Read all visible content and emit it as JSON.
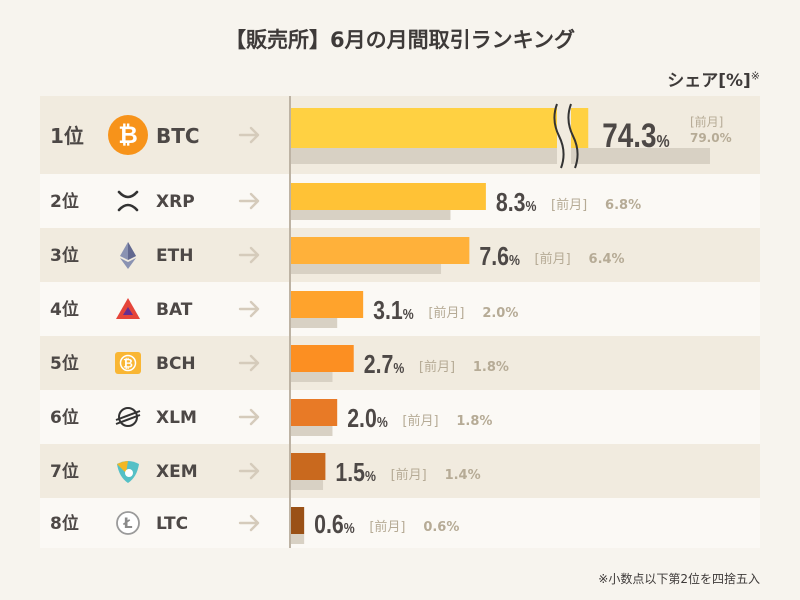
{
  "chart_data": {
    "type": "bar",
    "title": "【販売所】6月の月間取引ランキング",
    "unit_label": "シェア[%]",
    "unit_mark": "※",
    "prev_label": "[前月]",
    "pct_sign": "%",
    "xlim": [
      0,
      12
    ],
    "axis_break": {
      "category": "BTC",
      "marker": "wavy"
    },
    "series": [
      {
        "key": "current"
      },
      {
        "key": "previous"
      }
    ],
    "rows": [
      {
        "rank": "1位",
        "name": "BTC",
        "icon": "bitcoin-icon",
        "current": 74.3,
        "previous": 79.0,
        "current_text": "74.3",
        "previous_text": "79.0",
        "color": "#ffd142"
      },
      {
        "rank": "2位",
        "name": "XRP",
        "icon": "xrp-icon",
        "current": 8.3,
        "previous": 6.8,
        "current_text": "8.3",
        "previous_text": "6.8",
        "color": "#ffc236"
      },
      {
        "rank": "3位",
        "name": "ETH",
        "icon": "ethereum-icon",
        "current": 7.6,
        "previous": 6.4,
        "current_text": "7.6",
        "previous_text": "6.4",
        "color": "#ffb13a"
      },
      {
        "rank": "4位",
        "name": "BAT",
        "icon": "bat-icon",
        "current": 3.1,
        "previous": 2.0,
        "current_text": "3.1",
        "previous_text": "2.0",
        "color": "#ffa32c"
      },
      {
        "rank": "5位",
        "name": "BCH",
        "icon": "bitcoin-cash-icon",
        "current": 2.7,
        "previous": 1.8,
        "current_text": "2.7",
        "previous_text": "1.8",
        "color": "#fc8f22"
      },
      {
        "rank": "6位",
        "name": "XLM",
        "icon": "stellar-icon",
        "current": 2.0,
        "previous": 1.8,
        "current_text": "2.0",
        "previous_text": "1.8",
        "color": "#e87a26"
      },
      {
        "rank": "7位",
        "name": "XEM",
        "icon": "nem-icon",
        "current": 1.5,
        "previous": 1.4,
        "current_text": "1.5",
        "previous_text": "1.4",
        "color": "#c9691e"
      },
      {
        "rank": "8位",
        "name": "LTC",
        "icon": "litecoin-icon",
        "current": 0.6,
        "previous": 0.6,
        "current_text": "0.6",
        "previous_text": "0.6",
        "color": "#9a5116"
      }
    ],
    "colors": {
      "previous": "#d8d1c4",
      "row_odd": "#f1ebdf",
      "row_even": "#fbf9f5",
      "arrow": "#d5cbbb",
      "axis": "#bdb3a4",
      "prev_text": "#b6ab96",
      "value_text": "#4d4846",
      "btc": "#f7931a",
      "bch": "#f9b634",
      "bat": "#e5453a",
      "xem_teal": "#55c0c6",
      "xem_gold": "#f3b724",
      "dark": "#333333"
    },
    "footnote": "※小数点以下第2位を四捨五入"
  }
}
